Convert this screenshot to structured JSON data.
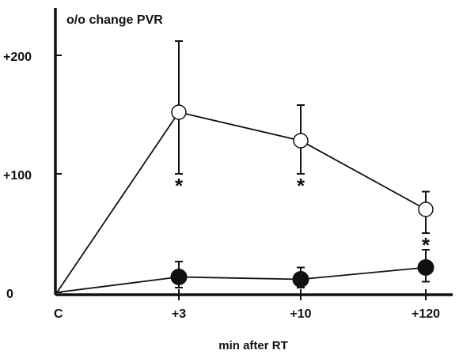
{
  "chart_data": {
    "type": "line",
    "ylabel": "o/o change PVR",
    "xlabel": "min after RT",
    "categories": [
      "C",
      "+3",
      "+10",
      "+120"
    ],
    "yticks": [
      {
        "value": 0,
        "label": "0"
      },
      {
        "value": 100,
        "label": "+100"
      },
      {
        "value": 200,
        "label": "+200"
      }
    ],
    "ylim": [
      0,
      230
    ],
    "series": [
      {
        "marker": "open-circle",
        "values": [
          0,
          152,
          128,
          70
        ],
        "err_upper": [
          null,
          212,
          158,
          85
        ],
        "err_lower": [
          null,
          100,
          100,
          50
        ],
        "significance": [
          "",
          "*",
          "*",
          "*"
        ]
      },
      {
        "marker": "filled-circle",
        "values": [
          0,
          13,
          11,
          21
        ],
        "err_upper": [
          null,
          26,
          21,
          36
        ],
        "err_lower": [
          null,
          4,
          4,
          9
        ],
        "significance": [
          "",
          "",
          "",
          ""
        ]
      }
    ],
    "grid": false,
    "legend": "none"
  }
}
